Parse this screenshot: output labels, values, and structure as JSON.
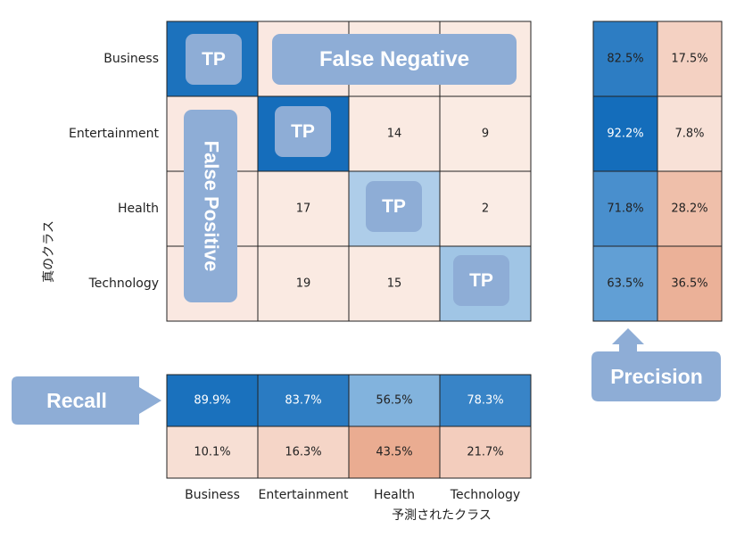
{
  "chart_data": [
    {
      "type": "heatmap",
      "rows": [
        "Business",
        "Entertainment",
        "Health",
        "Technology"
      ],
      "cols": [
        "Business",
        "Entertainment",
        "Health",
        "Technology"
      ],
      "values": [
        [
          null,
          null,
          null,
          null
        ],
        [
          null,
          null,
          "14",
          "9"
        ],
        [
          null,
          "17",
          null,
          "2"
        ],
        [
          null,
          "19",
          "15",
          null
        ]
      ],
      "intensity": [
        [
          0.9,
          0.08,
          0.06,
          0.06
        ],
        [
          0.08,
          0.95,
          0.06,
          0.05
        ],
        [
          0.08,
          0.06,
          0.2,
          0.03
        ],
        [
          0.08,
          0.06,
          0.06,
          0.25
        ]
      ],
      "ylabel": "真のクラス",
      "xlabel": "予測されたクラス"
    },
    {
      "type": "heatmap",
      "name": "precision-summary",
      "values": [
        [
          "82.5%",
          "17.5%"
        ],
        [
          "92.2%",
          "7.8%"
        ],
        [
          "71.8%",
          "28.2%"
        ],
        [
          "63.5%",
          "36.5%"
        ]
      ],
      "percent": [
        [
          82.5,
          17.5
        ],
        [
          92.2,
          7.8
        ],
        [
          71.8,
          28.2
        ],
        [
          63.5,
          36.5
        ]
      ]
    },
    {
      "type": "heatmap",
      "name": "recall-summary",
      "values": [
        [
          "89.9%",
          "83.7%",
          "56.5%",
          "78.3%"
        ],
        [
          "10.1%",
          "16.3%",
          "43.5%",
          "21.7%"
        ]
      ],
      "percent": [
        [
          89.9,
          83.7,
          56.5,
          78.3
        ],
        [
          10.1,
          16.3,
          43.5,
          21.7
        ]
      ]
    }
  ],
  "callouts": {
    "tp": "TP",
    "false_negative": "False Negative",
    "false_positive": "False Positive",
    "recall": "Recall",
    "precision": "Precision"
  },
  "colors": {
    "callout_fill": "#8eadd6",
    "grid_line": "#222222"
  }
}
